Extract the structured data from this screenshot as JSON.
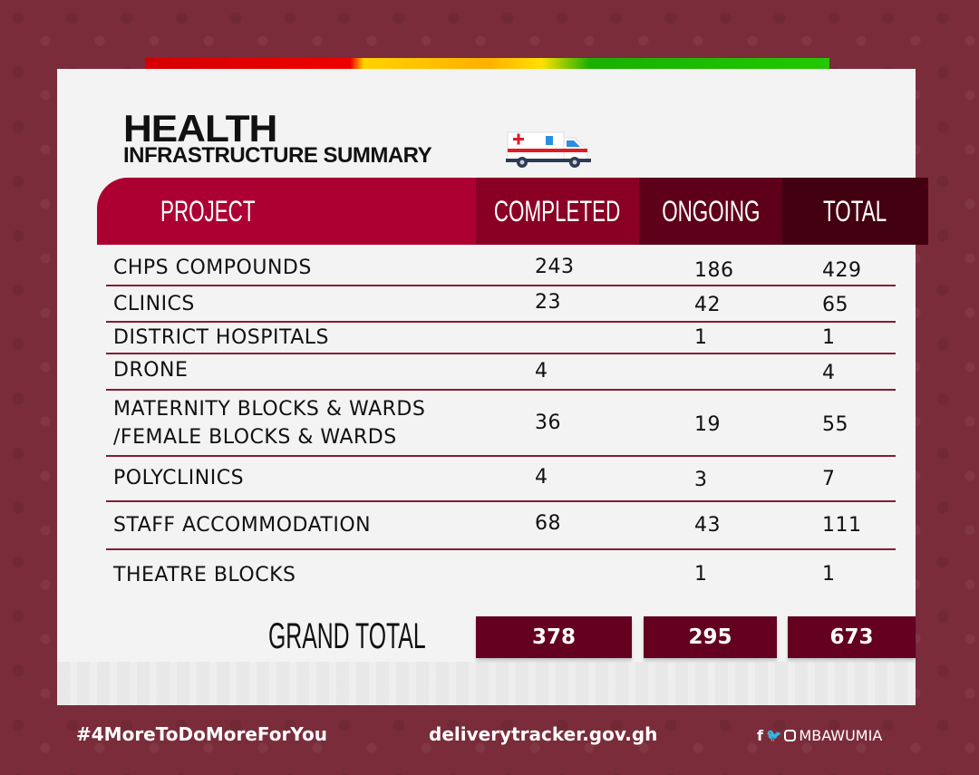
{
  "title": {
    "line1": "HEALTH",
    "line2": "INFRASTRUCTURE SUMMARY"
  },
  "columns": [
    "PROJECT",
    "COMPLETED",
    "ONGOING",
    "TOTAL"
  ],
  "rows": [
    {
      "project": "CHPS COMPOUNDS",
      "completed": "243",
      "ongoing": "186",
      "total": "429"
    },
    {
      "project": "CLINICS",
      "completed": "23",
      "ongoing": "42",
      "total": "65"
    },
    {
      "project": "DISTRICT HOSPITALS",
      "completed": "",
      "ongoing": "1",
      "total": "1"
    },
    {
      "project": "DRONE",
      "completed": "4",
      "ongoing": "",
      "total": "4"
    },
    {
      "project": "MATERNITY BLOCKS & WARDS /FEMALE BLOCKS & WARDS",
      "completed": "36",
      "ongoing": "19",
      "total": "55"
    },
    {
      "project": "POLYCLINICS",
      "completed": "4",
      "ongoing": "3",
      "total": "7"
    },
    {
      "project": "STAFF ACCOMMODATION",
      "completed": "68",
      "ongoing": "43",
      "total": "111"
    },
    {
      "project": "THEATRE BLOCKS",
      "completed": "",
      "ongoing": "1",
      "total": "1"
    }
  ],
  "grand_total": {
    "label": "GRAND TOTAL",
    "completed": "378",
    "ongoing": "295",
    "total": "673"
  },
  "footer": {
    "hashtag": "#4MoreToDoMoreForYou",
    "website": "deliverytracker.gov.gh",
    "social_handle": "MBAWUMIA"
  },
  "colors": {
    "background": "#7b2c3b",
    "header": "#ad0032",
    "total_box": "#640020"
  }
}
